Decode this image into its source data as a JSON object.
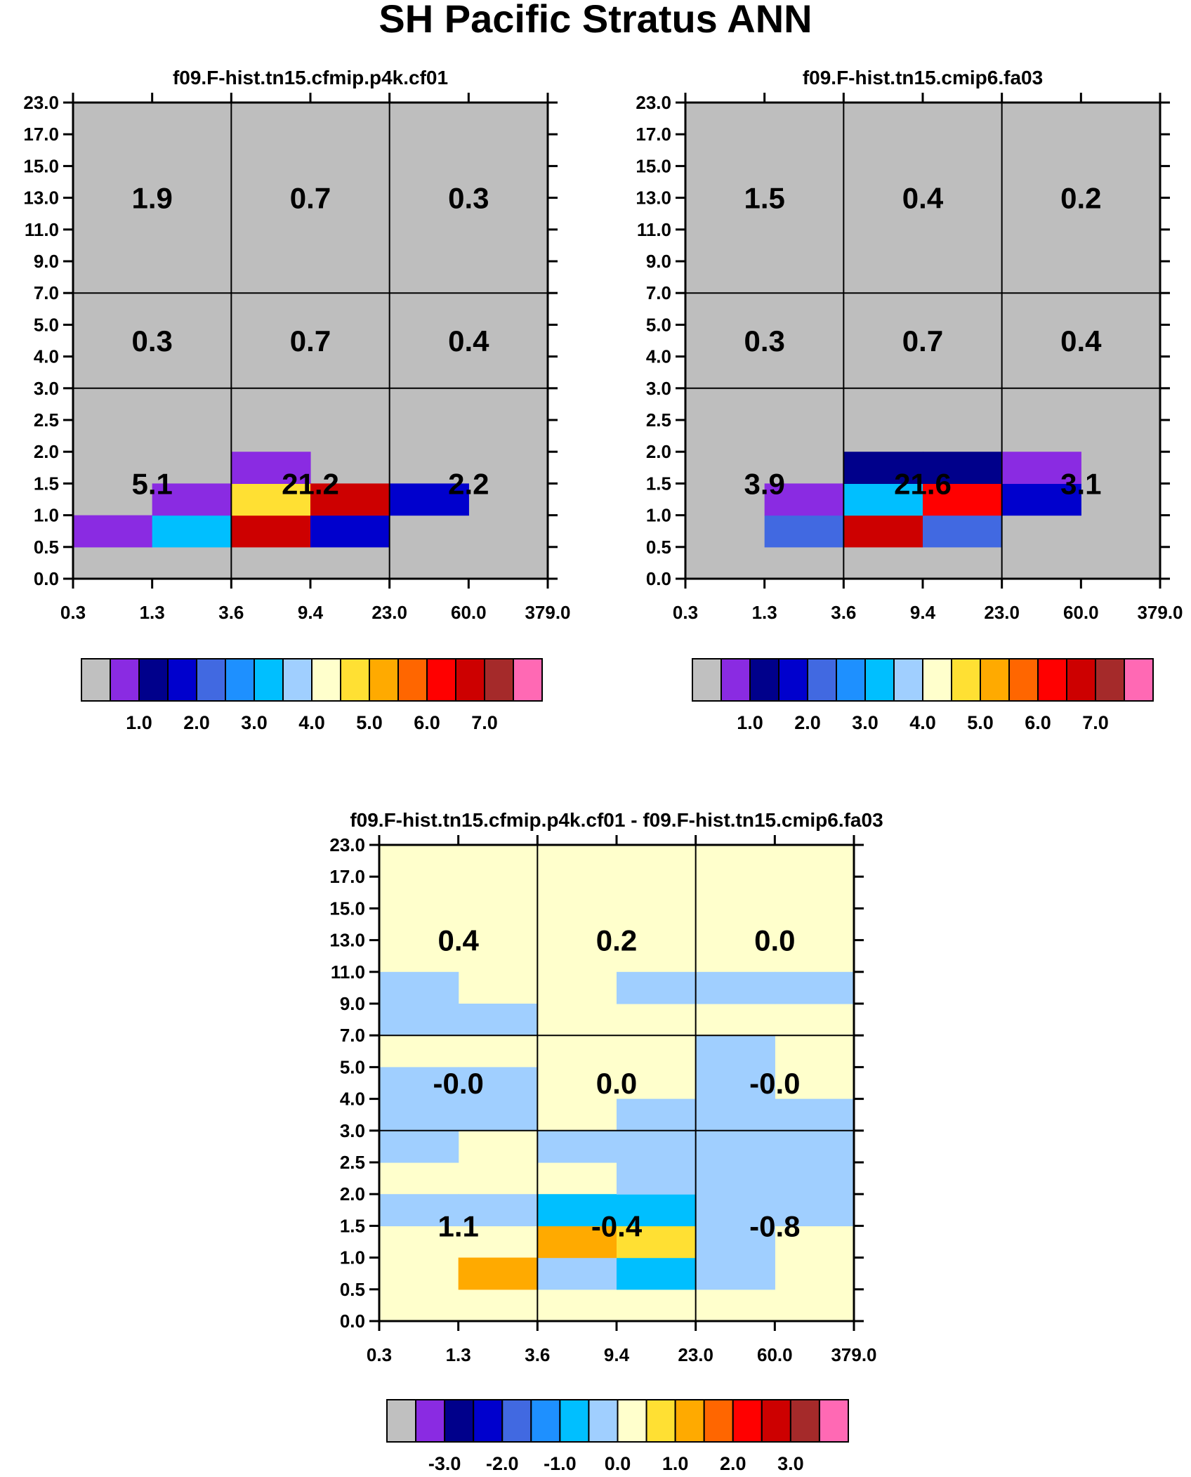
{
  "title": "SH Pacific Stratus ANN",
  "chart_data": [
    {
      "type": "heatmap",
      "title": "f09.F-hist.tn15.cfmip.p4k.cf01",
      "x_ticks": [
        "0.3",
        "1.3",
        "3.6",
        "9.4",
        "23.0",
        "60.0",
        "379.0"
      ],
      "y_ticks": [
        "0.0",
        "0.5",
        "1.0",
        "1.5",
        "2.0",
        "2.5",
        "3.0",
        "4.0",
        "5.0",
        "7.0",
        "9.0",
        "11.0",
        "13.0",
        "15.0",
        "17.0",
        "23.0"
      ],
      "background_color": "#bebebe",
      "cells": [
        {
          "x": 0,
          "y": 1,
          "color": "#8a2be2"
        },
        {
          "x": 1,
          "y": 1,
          "color": "#00bfff"
        },
        {
          "x": 1,
          "y": 2,
          "color": "#8a2be2"
        },
        {
          "x": 2,
          "y": 1,
          "color": "#cd0000"
        },
        {
          "x": 2,
          "y": 2,
          "color": "#ffe033"
        },
        {
          "x": 2,
          "y": 3,
          "color": "#8a2be2"
        },
        {
          "x": 3,
          "y": 1,
          "color": "#0000cd"
        },
        {
          "x": 3,
          "y": 2,
          "color": "#cd0000"
        },
        {
          "x": 4,
          "y": 2,
          "color": "#0000cd"
        }
      ],
      "annotations": [
        {
          "x": 1,
          "y": 12,
          "text": "1.9"
        },
        {
          "x": 3,
          "y": 12,
          "text": "0.7"
        },
        {
          "x": 5,
          "y": 12,
          "text": "0.3"
        },
        {
          "x": 1,
          "y": 7.5,
          "text": "0.3"
        },
        {
          "x": 3,
          "y": 7.5,
          "text": "0.7"
        },
        {
          "x": 5,
          "y": 7.5,
          "text": "0.4"
        },
        {
          "x": 1,
          "y": 3,
          "text": "5.1"
        },
        {
          "x": 3,
          "y": 3,
          "text": "21.2"
        },
        {
          "x": 5,
          "y": 3,
          "text": "2.2"
        }
      ],
      "colorbar": {
        "colors": [
          "#c0c0c0",
          "#8a2be2",
          "#00008b",
          "#0000cd",
          "#4169e1",
          "#1e90ff",
          "#00bfff",
          "#a0cfff",
          "#ffffcc",
          "#ffe033",
          "#ffaa00",
          "#ff6600",
          "#ff0000",
          "#cd0000",
          "#a52a2a",
          "#ff69b4"
        ],
        "labels": [
          "1.0",
          "2.0",
          "3.0",
          "4.0",
          "5.0",
          "6.0",
          "7.0"
        ]
      }
    },
    {
      "type": "heatmap",
      "title": "f09.F-hist.tn15.cmip6.fa03",
      "x_ticks": [
        "0.3",
        "1.3",
        "3.6",
        "9.4",
        "23.0",
        "60.0",
        "379.0"
      ],
      "y_ticks": [
        "0.0",
        "0.5",
        "1.0",
        "1.5",
        "2.0",
        "2.5",
        "3.0",
        "4.0",
        "5.0",
        "7.0",
        "9.0",
        "11.0",
        "13.0",
        "15.0",
        "17.0",
        "23.0"
      ],
      "background_color": "#bebebe",
      "cells": [
        {
          "x": 1,
          "y": 1,
          "color": "#4169e1"
        },
        {
          "x": 1,
          "y": 2,
          "color": "#8a2be2"
        },
        {
          "x": 2,
          "y": 1,
          "color": "#cd0000"
        },
        {
          "x": 2,
          "y": 2,
          "color": "#00bfff"
        },
        {
          "x": 2,
          "y": 3,
          "color": "#00008b"
        },
        {
          "x": 3,
          "y": 1,
          "color": "#4169e1"
        },
        {
          "x": 3,
          "y": 2,
          "color": "#ff0000"
        },
        {
          "x": 3,
          "y": 3,
          "color": "#00008b"
        },
        {
          "x": 4,
          "y": 2,
          "color": "#0000cd"
        },
        {
          "x": 4,
          "y": 3,
          "color": "#8a2be2"
        }
      ],
      "annotations": [
        {
          "x": 1,
          "y": 12,
          "text": "1.5"
        },
        {
          "x": 3,
          "y": 12,
          "text": "0.4"
        },
        {
          "x": 5,
          "y": 12,
          "text": "0.2"
        },
        {
          "x": 1,
          "y": 7.5,
          "text": "0.3"
        },
        {
          "x": 3,
          "y": 7.5,
          "text": "0.7"
        },
        {
          "x": 5,
          "y": 7.5,
          "text": "0.4"
        },
        {
          "x": 1,
          "y": 3,
          "text": "3.9"
        },
        {
          "x": 3,
          "y": 3,
          "text": "21.6"
        },
        {
          "x": 5,
          "y": 3,
          "text": "3.1"
        }
      ],
      "colorbar": {
        "colors": [
          "#c0c0c0",
          "#8a2be2",
          "#00008b",
          "#0000cd",
          "#4169e1",
          "#1e90ff",
          "#00bfff",
          "#a0cfff",
          "#ffffcc",
          "#ffe033",
          "#ffaa00",
          "#ff6600",
          "#ff0000",
          "#cd0000",
          "#a52a2a",
          "#ff69b4"
        ],
        "labels": [
          "1.0",
          "2.0",
          "3.0",
          "4.0",
          "5.0",
          "6.0",
          "7.0"
        ]
      }
    },
    {
      "type": "heatmap",
      "title": "f09.F-hist.tn15.cfmip.p4k.cf01 - f09.F-hist.tn15.cmip6.fa03",
      "x_ticks": [
        "0.3",
        "1.3",
        "3.6",
        "9.4",
        "23.0",
        "60.0",
        "379.0"
      ],
      "y_ticks": [
        "0.0",
        "0.5",
        "1.0",
        "1.5",
        "2.0",
        "2.5",
        "3.0",
        "4.0",
        "5.0",
        "7.0",
        "9.0",
        "11.0",
        "13.0",
        "15.0",
        "17.0",
        "23.0"
      ],
      "background_color": "#ffffcc",
      "cells": [
        {
          "x": 1,
          "y": 1,
          "color": "#ffaa00"
        },
        {
          "x": 2,
          "y": 1,
          "color": "#a0cfff"
        },
        {
          "x": 3,
          "y": 1,
          "color": "#00bfff"
        },
        {
          "x": 4,
          "y": 1,
          "color": "#a0cfff"
        },
        {
          "x": 2,
          "y": 2,
          "color": "#ffaa00"
        },
        {
          "x": 3,
          "y": 2,
          "color": "#ffe033"
        },
        {
          "x": 4,
          "y": 2,
          "color": "#a0cfff"
        },
        {
          "x": 0,
          "y": 3,
          "color": "#a0cfff"
        },
        {
          "x": 1,
          "y": 3,
          "color": "#a0cfff"
        },
        {
          "x": 2,
          "y": 3,
          "color": "#00bfff"
        },
        {
          "x": 3,
          "y": 3,
          "color": "#00bfff"
        },
        {
          "x": 4,
          "y": 3,
          "color": "#a0cfff"
        },
        {
          "x": 5,
          "y": 3,
          "color": "#a0cfff"
        },
        {
          "x": 3,
          "y": 4,
          "color": "#a0cfff"
        },
        {
          "x": 4,
          "y": 4,
          "color": "#a0cfff"
        },
        {
          "x": 5,
          "y": 4,
          "color": "#a0cfff"
        },
        {
          "x": 0,
          "y": 5,
          "color": "#a0cfff"
        },
        {
          "x": 2,
          "y": 5,
          "color": "#a0cfff"
        },
        {
          "x": 3,
          "y": 5,
          "color": "#a0cfff"
        },
        {
          "x": 4,
          "y": 5,
          "color": "#a0cfff"
        },
        {
          "x": 5,
          "y": 5,
          "color": "#a0cfff"
        },
        {
          "x": 0,
          "y": 6,
          "color": "#a0cfff"
        },
        {
          "x": 1,
          "y": 6,
          "color": "#a0cfff"
        },
        {
          "x": 3,
          "y": 6,
          "color": "#a0cfff"
        },
        {
          "x": 4,
          "y": 6,
          "color": "#a0cfff"
        },
        {
          "x": 5,
          "y": 6,
          "color": "#a0cfff"
        },
        {
          "x": 0,
          "y": 7,
          "color": "#a0cfff"
        },
        {
          "x": 1,
          "y": 7,
          "color": "#a0cfff"
        },
        {
          "x": 4,
          "y": 7,
          "color": "#a0cfff"
        },
        {
          "x": 4,
          "y": 8,
          "color": "#a0cfff"
        },
        {
          "x": 0,
          "y": 9,
          "color": "#a0cfff"
        },
        {
          "x": 1,
          "y": 9,
          "color": "#a0cfff"
        },
        {
          "x": 0,
          "y": 10,
          "color": "#a0cfff"
        },
        {
          "x": 3,
          "y": 10,
          "color": "#a0cfff"
        },
        {
          "x": 4,
          "y": 10,
          "color": "#a0cfff"
        },
        {
          "x": 5,
          "y": 10,
          "color": "#a0cfff"
        }
      ],
      "annotations": [
        {
          "x": 1,
          "y": 12,
          "text": "0.4"
        },
        {
          "x": 3,
          "y": 12,
          "text": "0.2"
        },
        {
          "x": 5,
          "y": 12,
          "text": "0.0"
        },
        {
          "x": 1,
          "y": 7.5,
          "text": "-0.0"
        },
        {
          "x": 3,
          "y": 7.5,
          "text": "0.0"
        },
        {
          "x": 5,
          "y": 7.5,
          "text": "-0.0"
        },
        {
          "x": 1,
          "y": 3,
          "text": "1.1"
        },
        {
          "x": 3,
          "y": 3,
          "text": "-0.4"
        },
        {
          "x": 5,
          "y": 3,
          "text": "-0.8"
        }
      ],
      "colorbar": {
        "colors": [
          "#c0c0c0",
          "#8a2be2",
          "#00008b",
          "#0000cd",
          "#4169e1",
          "#1e90ff",
          "#00bfff",
          "#a0cfff",
          "#ffffcc",
          "#ffe033",
          "#ffaa00",
          "#ff6600",
          "#ff0000",
          "#cd0000",
          "#a52a2a",
          "#ff69b4"
        ],
        "labels": [
          "-3.0",
          "-2.0",
          "-1.0",
          "0.0",
          "1.0",
          "2.0",
          "3.0"
        ]
      }
    }
  ]
}
